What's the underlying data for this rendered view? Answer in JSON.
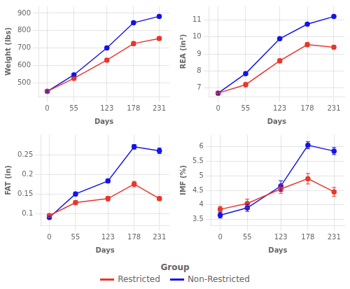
{
  "chart_data": [
    {
      "type": "line",
      "xlabel": "Days",
      "ylabel": "Weight (lbs)",
      "x": [
        0,
        55,
        123,
        178,
        231
      ],
      "xlim": [
        -18,
        252
      ],
      "xticks": [
        0,
        55,
        123,
        178,
        231
      ],
      "ylim": [
        420,
        940
      ],
      "yticks": [
        500,
        600,
        700,
        800,
        900
      ],
      "grid": true,
      "marker": "circle",
      "series": [
        {
          "name": "Restricted",
          "color": "#e8372c",
          "values": [
            450,
            525,
            630,
            725,
            755
          ],
          "errors": [
            6,
            8,
            10,
            12,
            10
          ]
        },
        {
          "name": "Non-Restricted",
          "color": "#1414e8",
          "values": [
            450,
            545,
            700,
            845,
            882
          ],
          "errors": [
            6,
            8,
            10,
            8,
            8
          ]
        }
      ]
    },
    {
      "type": "line",
      "xlabel": "Days",
      "ylabel": "REA (in²)",
      "x": [
        0,
        55,
        123,
        178,
        231
      ],
      "xlim": [
        -18,
        252
      ],
      "xticks": [
        0,
        55,
        123,
        178,
        231
      ],
      "ylim": [
        6.5,
        11.8
      ],
      "yticks": [
        7,
        8,
        9,
        10,
        11
      ],
      "grid": true,
      "marker": "circle",
      "series": [
        {
          "name": "Restricted",
          "color": "#e8372c",
          "values": [
            6.7,
            7.2,
            8.6,
            9.55,
            9.4
          ],
          "errors": [
            0.08,
            0.12,
            0.12,
            0.12,
            0.1
          ]
        },
        {
          "name": "Non-Restricted",
          "color": "#1414e8",
          "values": [
            6.7,
            7.85,
            9.9,
            10.75,
            11.2
          ],
          "errors": [
            0.08,
            0.1,
            0.08,
            0.08,
            0.08
          ]
        }
      ]
    },
    {
      "type": "line",
      "xlabel": "Days",
      "ylabel": "FAT (in)",
      "x": [
        0,
        55,
        123,
        178,
        231
      ],
      "xlim": [
        -18,
        252
      ],
      "xticks": [
        0,
        55,
        123,
        178,
        231
      ],
      "ylim": [
        0.07,
        0.3
      ],
      "yticks": [
        0.1,
        0.15,
        0.2,
        0.25
      ],
      "grid": true,
      "marker": "circle",
      "series": [
        {
          "name": "Restricted",
          "color": "#e8372c",
          "values": [
            0.095,
            0.128,
            0.138,
            0.175,
            0.138
          ],
          "errors": [
            0.004,
            0.005,
            0.006,
            0.007,
            0.005
          ]
        },
        {
          "name": "Non-Restricted",
          "color": "#1414e8",
          "values": [
            0.09,
            0.15,
            0.183,
            0.27,
            0.26
          ],
          "errors": [
            0.003,
            0.005,
            0.005,
            0.006,
            0.007
          ]
        }
      ]
    },
    {
      "type": "line",
      "xlabel": "Days",
      "ylabel": "IMF (%)",
      "x": [
        0,
        55,
        123,
        178,
        231
      ],
      "xlim": [
        -18,
        252
      ],
      "xticks": [
        0,
        55,
        123,
        178,
        231
      ],
      "ylim": [
        3.3,
        6.4
      ],
      "yticks": [
        3.5,
        4,
        4.5,
        5,
        5.5,
        6
      ],
      "grid": true,
      "marker": "circle",
      "series": [
        {
          "name": "Restricted",
          "color": "#e8372c",
          "values": [
            3.85,
            4.05,
            4.55,
            4.9,
            4.45
          ],
          "errors": [
            0.1,
            0.15,
            0.15,
            0.18,
            0.15
          ]
        },
        {
          "name": "Non-Restricted",
          "color": "#1414e8",
          "values": [
            3.65,
            3.9,
            4.65,
            6.05,
            5.85
          ],
          "errors": [
            0.1,
            0.12,
            0.18,
            0.12,
            0.12
          ]
        }
      ]
    }
  ],
  "legend": "bottom",
  "legend_title": "Group"
}
